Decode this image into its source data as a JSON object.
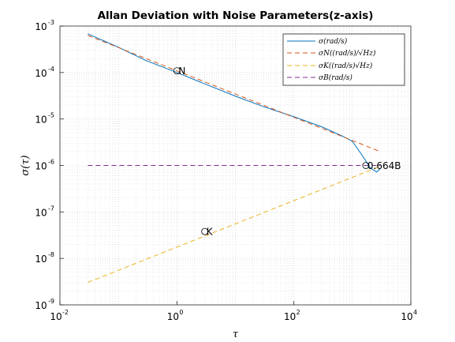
{
  "chart_data": {
    "type": "line",
    "title": "Allan Deviation with Noise Parameters(z-axis)",
    "xlabel": "τ",
    "ylabel": "σ(τ)",
    "xscale": "log",
    "yscale": "log",
    "xlim": [
      0.01,
      10000
    ],
    "ylim": [
      1e-09,
      0.001
    ],
    "grid": "on (major and minor, dotted)",
    "legend_placement": "top-right",
    "x_ticks": [
      {
        "base": "10",
        "exp": "-2"
      },
      {
        "base": "10",
        "exp": "0"
      },
      {
        "base": "10",
        "exp": "2"
      },
      {
        "base": "10",
        "exp": "4"
      }
    ],
    "y_ticks": [
      {
        "base": "10",
        "exp": "-9"
      },
      {
        "base": "10",
        "exp": "-8"
      },
      {
        "base": "10",
        "exp": "-7"
      },
      {
        "base": "10",
        "exp": "-6"
      },
      {
        "base": "10",
        "exp": "-5"
      },
      {
        "base": "10",
        "exp": "-4"
      },
      {
        "base": "10",
        "exp": "-3"
      }
    ],
    "series": [
      {
        "name": "σ(rad/s)",
        "color": "#0072bd",
        "style": "solid",
        "x": [
          0.03,
          0.1,
          0.3,
          1,
          3,
          10,
          30,
          100,
          300,
          700,
          1000,
          1500,
          2000,
          2600,
          3000
        ],
        "y": [
          0.00068,
          0.00035,
          0.00018,
          0.0001,
          5.7e-05,
          3.1e-05,
          1.85e-05,
          1.12e-05,
          6.8e-06,
          4.2e-06,
          3.3e-06,
          1.6e-06,
          9e-07,
          7.2e-07,
          8.5e-07
        ]
      },
      {
        "name": "σN((rad/s)/√Hz)",
        "color": "#d95319",
        "style": "dashed",
        "x": [
          0.03,
          3000
        ],
        "y": [
          0.000629,
          1.99e-06
        ]
      },
      {
        "name": "σK((rad/s)√Hz)",
        "color": "#edb120",
        "style": "dashed",
        "x": [
          0.03,
          3000
        ],
        "y": [
          3.04e-09,
          9.6e-07
        ]
      },
      {
        "name": "σB(rad/s)",
        "color": "#7e2f8e",
        "style": "dashed",
        "x": [
          0.03,
          3000
        ],
        "y": [
          1e-06,
          1e-06
        ]
      }
    ],
    "annotations": [
      {
        "text": "N",
        "x": 1,
        "y": 0.000109
      },
      {
        "text": "K",
        "x": 3,
        "y": 3.79e-08
      },
      {
        "text": "0.664B",
        "x": 1700,
        "y": 1e-06
      }
    ]
  }
}
